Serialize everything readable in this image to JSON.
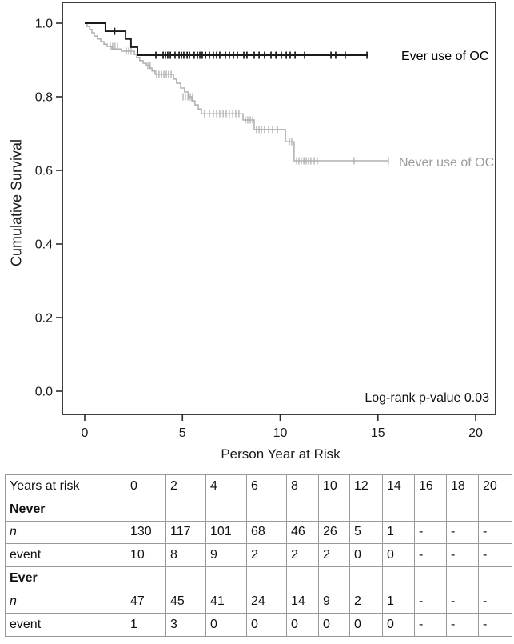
{
  "chart_data": {
    "type": "line",
    "subtype": "kaplan-meier-step-survival",
    "title": "",
    "xlabel": "Person Year at Risk",
    "ylabel": "Cumulative Survival",
    "x_ticks": [
      0,
      5,
      10,
      15,
      20
    ],
    "y_ticks": [
      1.0,
      0.8,
      0.6,
      0.4,
      0.2,
      0.0
    ],
    "xlim": [
      0,
      20
    ],
    "ylim": [
      0.0,
      1.0
    ],
    "grid": false,
    "legend_position": "inline-right-of-curves",
    "annotation": "Log-rank p-value 0.03",
    "series": [
      {
        "name": "Ever use of OC",
        "color": "#1a1a1a",
        "label_color": "#000000",
        "points": [
          [
            0,
            1
          ],
          [
            1.06,
            1
          ],
          [
            1.06,
            0.978
          ],
          [
            2.09,
            0.978
          ],
          [
            2.09,
            0.957
          ],
          [
            2.37,
            0.957
          ],
          [
            2.37,
            0.935
          ],
          [
            2.7,
            0.935
          ],
          [
            2.7,
            0.913
          ],
          [
            14.48,
            0.913
          ]
        ],
        "censor_groups": [
          {
            "s": 0.978,
            "years": [
              1.53
            ]
          },
          {
            "s": 0.913,
            "years": [
              3.64,
              4.01,
              4.13,
              4.25,
              4.38,
              4.62,
              4.83,
              4.95,
              5.07,
              5.24,
              5.36,
              5.6,
              5.77,
              5.89,
              6.01,
              6.18,
              6.38,
              6.58,
              6.75,
              6.91,
              7.2,
              7.4,
              7.61,
              7.81,
              8.14,
              8.3,
              8.67,
              8.92,
              9.2,
              9.53,
              9.78,
              10.06,
              10.31,
              10.51,
              10.76,
              11.25,
              12.6,
              12.84,
              13.33,
              14.44
            ]
          }
        ]
      },
      {
        "name": "Never use of OC",
        "color": "#afafaf",
        "label_color": "#9c9c9c",
        "points": [
          [
            0,
            1
          ],
          [
            0.12,
            1
          ],
          [
            0.12,
            0.991
          ],
          [
            0.25,
            0.991
          ],
          [
            0.25,
            0.983
          ],
          [
            0.37,
            0.983
          ],
          [
            0.37,
            0.974
          ],
          [
            0.49,
            0.974
          ],
          [
            0.49,
            0.965
          ],
          [
            0.65,
            0.965
          ],
          [
            0.65,
            0.957
          ],
          [
            0.82,
            0.957
          ],
          [
            0.82,
            0.95
          ],
          [
            0.98,
            0.95
          ],
          [
            0.98,
            0.943
          ],
          [
            1.15,
            0.943
          ],
          [
            1.15,
            0.937
          ],
          [
            1.39,
            0.937
          ],
          [
            1.39,
            0.93
          ],
          [
            1.88,
            0.93
          ],
          [
            1.88,
            0.924
          ],
          [
            2.54,
            0.924
          ],
          [
            2.54,
            0.915
          ],
          [
            2.66,
            0.915
          ],
          [
            2.66,
            0.907
          ],
          [
            2.82,
            0.907
          ],
          [
            2.82,
            0.898
          ],
          [
            2.99,
            0.898
          ],
          [
            2.99,
            0.891
          ],
          [
            3.15,
            0.891
          ],
          [
            3.15,
            0.885
          ],
          [
            3.31,
            0.885
          ],
          [
            3.31,
            0.878
          ],
          [
            3.44,
            0.878
          ],
          [
            3.44,
            0.87
          ],
          [
            3.6,
            0.87
          ],
          [
            3.6,
            0.861
          ],
          [
            4.54,
            0.861
          ],
          [
            4.54,
            0.848
          ],
          [
            4.7,
            0.848
          ],
          [
            4.7,
            0.837
          ],
          [
            4.91,
            0.837
          ],
          [
            4.91,
            0.824
          ],
          [
            5.11,
            0.824
          ],
          [
            5.11,
            0.813
          ],
          [
            5.32,
            0.813
          ],
          [
            5.32,
            0.8
          ],
          [
            5.48,
            0.8
          ],
          [
            5.48,
            0.789
          ],
          [
            5.64,
            0.789
          ],
          [
            5.64,
            0.778
          ],
          [
            5.81,
            0.778
          ],
          [
            5.81,
            0.767
          ],
          [
            5.97,
            0.767
          ],
          [
            5.97,
            0.754
          ],
          [
            8.1,
            0.754
          ],
          [
            8.1,
            0.737
          ],
          [
            8.67,
            0.737
          ],
          [
            8.67,
            0.711
          ],
          [
            10.27,
            0.711
          ],
          [
            10.27,
            0.678
          ],
          [
            10.71,
            0.678
          ],
          [
            10.71,
            0.626
          ],
          [
            15.54,
            0.626
          ]
        ],
        "censor_groups": [
          {
            "s": 0.937,
            "years": [
              1.31,
              1.43,
              1.55,
              1.68
            ]
          },
          {
            "s": 0.924,
            "years": [
              2.13,
              2.25,
              2.37
            ]
          },
          {
            "s": 0.885,
            "years": [
              3.23,
              3.35
            ]
          },
          {
            "s": 0.861,
            "years": [
              3.68,
              3.8,
              3.93,
              4.05,
              4.17,
              4.29,
              4.42
            ]
          },
          {
            "s": 0.8,
            "years": [
              5.03,
              5.15,
              5.28,
              5.4,
              5.52
            ]
          },
          {
            "s": 0.754,
            "years": [
              6.13,
              6.38,
              6.58,
              6.75,
              6.91,
              7.08,
              7.24,
              7.4,
              7.57,
              7.73,
              7.89
            ]
          },
          {
            "s": 0.737,
            "years": [
              8.22,
              8.34,
              8.47,
              8.59
            ]
          },
          {
            "s": 0.711,
            "years": [
              8.79,
              8.92,
              9.04,
              9.2,
              9.41,
              9.61,
              9.86
            ]
          },
          {
            "s": 0.678,
            "years": [
              10.47,
              10.59
            ]
          },
          {
            "s": 0.626,
            "years": [
              10.84,
              10.96,
              11.08,
              11.21,
              11.33,
              11.45,
              11.57,
              11.74,
              11.9,
              13.78,
              15.54
            ]
          }
        ]
      }
    ],
    "risk_table": {
      "row_header": "Years at risk",
      "columns": [
        "0",
        "2",
        "4",
        "6",
        "8",
        "10",
        "12",
        "14",
        "16",
        "18",
        "20"
      ],
      "rows": [
        {
          "label": "Never",
          "bold": true,
          "values": [
            "",
            "",
            "",
            "",
            "",
            "",
            "",
            "",
            "",
            "",
            ""
          ]
        },
        {
          "label": "n",
          "italic": true,
          "values": [
            "130",
            "117",
            "101",
            "68",
            "46",
            "26",
            "5",
            "1",
            "-",
            "-",
            "-"
          ]
        },
        {
          "label": "event",
          "values": [
            "10",
            "8",
            "9",
            "2",
            "2",
            "2",
            "0",
            "0",
            "-",
            "-",
            "-"
          ]
        },
        {
          "label": "Ever",
          "bold": true,
          "values": [
            "",
            "",
            "",
            "",
            "",
            "",
            "",
            "",
            "",
            "",
            ""
          ]
        },
        {
          "label": "n",
          "italic": true,
          "values": [
            "47",
            "45",
            "41",
            "24",
            "14",
            "9",
            "2",
            "1",
            "-",
            "-",
            "-"
          ]
        },
        {
          "label": "event",
          "values": [
            "1",
            "3",
            "0",
            "0",
            "0",
            "0",
            "0",
            "0",
            "-",
            "-",
            "-"
          ]
        }
      ]
    }
  }
}
